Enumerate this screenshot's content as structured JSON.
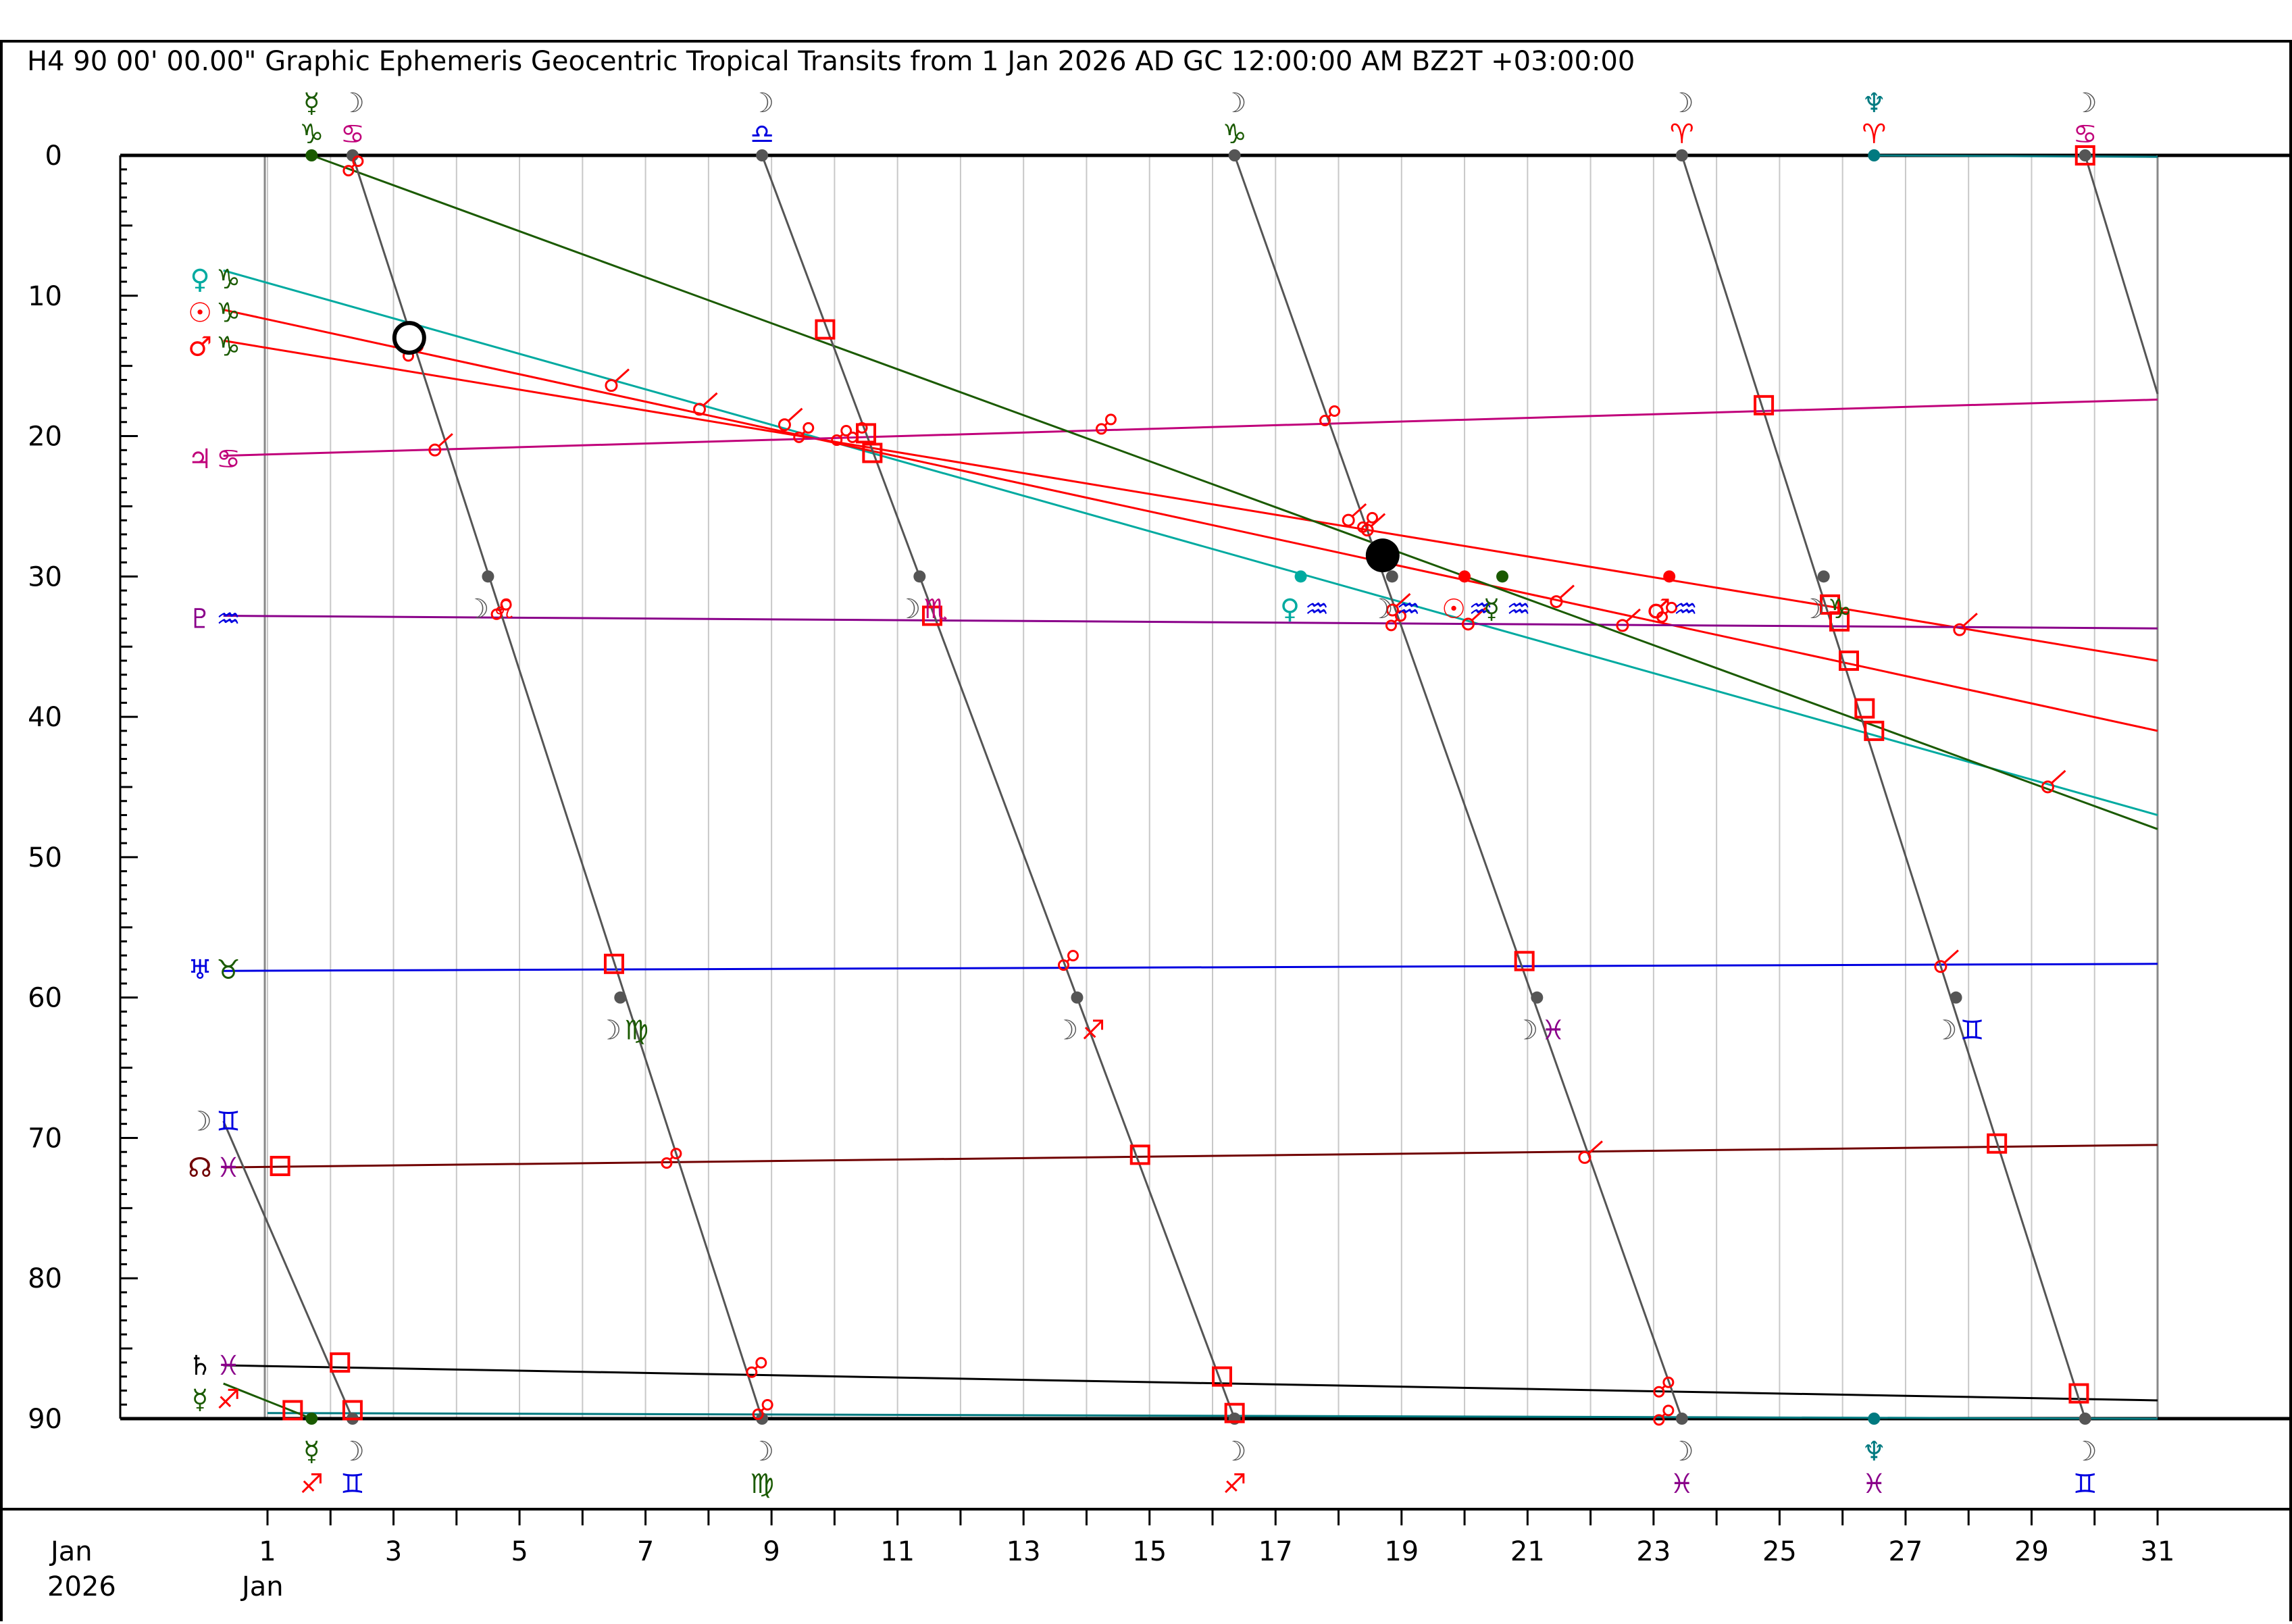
{
  "header": {
    "title": "H4   90 00' 00.00\" Graphic Ephemeris Geocentric Tropical Transits from 1 Jan 2026 AD GC 12:00:00 AM BZ2T +03:00:00"
  },
  "footer": {
    "month_label": "Jan",
    "year_label": "2026",
    "sub_month_label": "Jan"
  },
  "colors": {
    "moon": "#555555",
    "sun": "#ff0000",
    "mercury": "#1a5a00",
    "venus": "#00aaa0",
    "mars": "#ff0000",
    "jupiter": "#c0007a",
    "saturn": "#000000",
    "uranus": "#0000e0",
    "neptune": "#007a80",
    "pluto": "#8a008a",
    "node": "#700000",
    "aspect": "#ff0000",
    "grid": "#c8c8c8"
  },
  "chart_data": {
    "type": "line",
    "title": "H4   90 00' 00.00\" Graphic Ephemeris Geocentric Tropical Transits from 1 Jan 2026 AD GC 12:00:00 AM BZ2T +03:00:00",
    "xlabel": "Jan 2026",
    "ylabel": "",
    "xlim": [
      1,
      31
    ],
    "ylim": [
      0,
      90
    ],
    "y_axis_inverted": true,
    "grid": true,
    "x_ticks": [
      1,
      3,
      5,
      7,
      9,
      11,
      13,
      15,
      17,
      19,
      21,
      23,
      25,
      27,
      29,
      31
    ],
    "x_tick_labels": [
      "1",
      "3",
      "5",
      "7",
      "9",
      "11",
      "13",
      "15",
      "17",
      "19",
      "21",
      "23",
      "25",
      "27",
      "29",
      "31"
    ],
    "y_ticks": [
      0,
      10,
      20,
      30,
      40,
      50,
      60,
      70,
      80,
      90
    ],
    "y_tick_labels": [
      "0",
      "10",
      "20",
      "30",
      "40",
      "50",
      "60",
      "70",
      "80",
      "90"
    ],
    "series": [
      {
        "key": "venus",
        "symbol": "♀",
        "sign": "♑",
        "color": "#00aaa0",
        "x": [
          0.3,
          31
        ],
        "y": [
          8.2,
          47.0
        ]
      },
      {
        "key": "sun",
        "symbol": "☉",
        "sign": "♑",
        "color": "#ff0000",
        "x": [
          0.3,
          31
        ],
        "y": [
          11.0,
          41.0
        ]
      },
      {
        "key": "mars",
        "symbol": "♂",
        "sign": "♑",
        "color": "#ff0000",
        "x": [
          0.3,
          31
        ],
        "y": [
          13.2,
          36.0
        ]
      },
      {
        "key": "jupiter",
        "symbol": "♃",
        "sign": "♋",
        "color": "#c0007a",
        "x": [
          0.3,
          31
        ],
        "y": [
          21.4,
          17.4
        ]
      },
      {
        "key": "pluto",
        "symbol": "♇",
        "sign": "♒",
        "color": "#8a008a",
        "x": [
          0.3,
          31
        ],
        "y": [
          32.8,
          33.7
        ]
      },
      {
        "key": "uranus",
        "symbol": "♅",
        "sign": "♉",
        "color": "#0000e0",
        "x": [
          0.3,
          31
        ],
        "y": [
          58.1,
          57.6
        ]
      },
      {
        "key": "node",
        "symbol": "☊",
        "sign": "♓",
        "color": "#700000",
        "x": [
          0.3,
          31
        ],
        "y": [
          72.1,
          70.5
        ]
      },
      {
        "key": "saturn",
        "symbol": "♄",
        "sign": "♓",
        "color": "#000000",
        "x": [
          0.3,
          31
        ],
        "y": [
          86.2,
          88.7
        ]
      },
      {
        "key": "neptune",
        "symbol": "♆",
        "sign": "♓",
        "color": "#007a80",
        "x": [
          1.0,
          31
        ],
        "y": [
          89.6,
          90.0
        ]
      },
      {
        "key": "neptune_b",
        "symbol": "",
        "sign": "",
        "color": "#007a80",
        "x": [
          26.5,
          31
        ],
        "y": [
          0.0,
          0.1
        ]
      },
      {
        "key": "mercury",
        "symbol": "☿",
        "sign": "♑",
        "color": "#1a5a00",
        "x": [
          1.7,
          31
        ],
        "y": [
          0.0,
          48.0
        ]
      },
      {
        "key": "mercury_b",
        "symbol": "☿",
        "sign": "♐",
        "color": "#1a5a00",
        "x": [
          0.3,
          1.7
        ],
        "y": [
          87.5,
          90.0
        ]
      },
      {
        "key": "moon",
        "symbol": "☽",
        "sign": "♊",
        "color": "#555555",
        "x": [
          0.3,
          2.35
        ],
        "y": [
          68.8,
          90.0
        ]
      },
      {
        "key": "moon",
        "symbol": "☽",
        "sign": "",
        "color": "#555555",
        "x": [
          2.35,
          8.85
        ],
        "y": [
          0.0,
          90.0
        ]
      },
      {
        "key": "moon",
        "symbol": "☽",
        "sign": "",
        "color": "#555555",
        "x": [
          8.85,
          16.35
        ],
        "y": [
          0.0,
          90.0
        ]
      },
      {
        "key": "moon",
        "symbol": "☽",
        "sign": "",
        "color": "#555555",
        "x": [
          16.35,
          23.45
        ],
        "y": [
          0.0,
          90.0
        ]
      },
      {
        "key": "moon",
        "symbol": "☽",
        "sign": "",
        "color": "#555555",
        "x": [
          23.45,
          29.85
        ],
        "y": [
          0.0,
          90.0
        ]
      },
      {
        "key": "moon",
        "symbol": "☽",
        "sign": "",
        "color": "#555555",
        "x": [
          29.85,
          31.0
        ],
        "y": [
          0.0,
          17.0
        ]
      }
    ],
    "stations": [
      {
        "x": 1.7,
        "y": 0,
        "color": "#1a5a00"
      },
      {
        "x": 2.35,
        "y": 0,
        "color": "#555555"
      },
      {
        "x": 8.85,
        "y": 0,
        "color": "#555555"
      },
      {
        "x": 16.35,
        "y": 0,
        "color": "#555555"
      },
      {
        "x": 23.45,
        "y": 0,
        "color": "#555555"
      },
      {
        "x": 26.5,
        "y": 0,
        "color": "#007a80"
      },
      {
        "x": 29.85,
        "y": 0,
        "color": "#555555"
      },
      {
        "x": 1.7,
        "y": 90,
        "color": "#1a5a00"
      },
      {
        "x": 2.35,
        "y": 90,
        "color": "#555555"
      },
      {
        "x": 8.85,
        "y": 90,
        "color": "#555555"
      },
      {
        "x": 16.35,
        "y": 90,
        "color": "#555555"
      },
      {
        "x": 23.45,
        "y": 90,
        "color": "#555555"
      },
      {
        "x": 26.5,
        "y": 90,
        "color": "#007a80"
      },
      {
        "x": 29.85,
        "y": 90,
        "color": "#555555"
      },
      {
        "x": 4.5,
        "y": 30,
        "color": "#555555"
      },
      {
        "x": 6.6,
        "y": 60,
        "color": "#555555"
      },
      {
        "x": 11.35,
        "y": 30,
        "color": "#555555"
      },
      {
        "x": 13.85,
        "y": 60,
        "color": "#555555"
      },
      {
        "x": 18.85,
        "y": 30,
        "color": "#555555"
      },
      {
        "x": 21.15,
        "y": 60,
        "color": "#555555"
      },
      {
        "x": 25.7,
        "y": 30,
        "color": "#555555"
      },
      {
        "x": 27.8,
        "y": 60,
        "color": "#555555"
      },
      {
        "x": 17.4,
        "y": 30,
        "color": "#00aaa0"
      },
      {
        "x": 20.0,
        "y": 30,
        "color": "#ff0000"
      },
      {
        "x": 20.6,
        "y": 30,
        "color": "#1a5a00"
      },
      {
        "x": 23.25,
        "y": 30,
        "color": "#ff0000"
      }
    ],
    "top_labels": [
      {
        "x": 1.7,
        "symbol": "☿",
        "sign": "♑",
        "color": "#1a5a00",
        "sign_color": "#1a5a00"
      },
      {
        "x": 2.35,
        "symbol": "☽",
        "sign": "♋",
        "color": "#555555",
        "sign_color": "#c0007a"
      },
      {
        "x": 8.85,
        "symbol": "☽",
        "sign": "♎",
        "color": "#555555",
        "sign_color": "#0000e0"
      },
      {
        "x": 16.35,
        "symbol": "☽",
        "sign": "♑",
        "color": "#555555",
        "sign_color": "#1a5a00"
      },
      {
        "x": 23.45,
        "symbol": "☽",
        "sign": "♈",
        "color": "#555555",
        "sign_color": "#ff0000"
      },
      {
        "x": 26.5,
        "symbol": "♆",
        "sign": "♈",
        "color": "#007a80",
        "sign_color": "#ff0000"
      },
      {
        "x": 29.85,
        "symbol": "☽",
        "sign": "♋",
        "color": "#555555",
        "sign_color": "#c0007a"
      }
    ],
    "bottom_labels": [
      {
        "x": 1.7,
        "symbol": "☿",
        "sign": "♐",
        "color": "#1a5a00",
        "sign_color": "#ff0000"
      },
      {
        "x": 2.35,
        "symbol": "☽",
        "sign": "♊",
        "color": "#555555",
        "sign_color": "#0000e0"
      },
      {
        "x": 8.85,
        "symbol": "☽",
        "sign": "♍",
        "color": "#555555",
        "sign_color": "#1a5a00"
      },
      {
        "x": 16.35,
        "symbol": "☽",
        "sign": "♐",
        "color": "#555555",
        "sign_color": "#ff0000"
      },
      {
        "x": 23.45,
        "symbol": "☽",
        "sign": "♓",
        "color": "#555555",
        "sign_color": "#8a008a"
      },
      {
        "x": 26.5,
        "symbol": "♆",
        "sign": "♓",
        "color": "#007a80",
        "sign_color": "#8a008a"
      },
      {
        "x": 29.85,
        "symbol": "☽",
        "sign": "♊",
        "color": "#555555",
        "sign_color": "#0000e0"
      }
    ],
    "left_labels": [
      {
        "y": 8.8,
        "symbol": "♀",
        "sign": "♑",
        "color": "#00aaa0",
        "sign_color": "#1a5a00"
      },
      {
        "y": 11.2,
        "symbol": "☉",
        "sign": "♑",
        "color": "#ff0000",
        "sign_color": "#1a5a00"
      },
      {
        "y": 13.6,
        "symbol": "♂",
        "sign": "♑",
        "color": "#ff0000",
        "sign_color": "#1a5a00"
      },
      {
        "y": 21.6,
        "symbol": "♃",
        "sign": "♋",
        "color": "#c0007a",
        "sign_color": "#c0007a"
      },
      {
        "y": 33.0,
        "symbol": "♇",
        "sign": "♒",
        "color": "#8a008a",
        "sign_color": "#0000e0"
      },
      {
        "y": 58.0,
        "symbol": "♅",
        "sign": "♉",
        "color": "#0000e0",
        "sign_color": "#1a5a00"
      },
      {
        "y": 68.8,
        "symbol": "☽",
        "sign": "♊",
        "color": "#555555",
        "sign_color": "#0000e0"
      },
      {
        "y": 72.1,
        "symbol": "☊",
        "sign": "♓",
        "color": "#700000",
        "sign_color": "#8a008a"
      },
      {
        "y": 86.2,
        "symbol": "♄",
        "sign": "♓",
        "color": "#000000",
        "sign_color": "#8a008a"
      },
      {
        "y": 88.6,
        "symbol": "☿",
        "sign": "♐",
        "color": "#1a5a00",
        "sign_color": "#ff0000"
      }
    ],
    "ingress_labels": [
      {
        "x": 4.5,
        "y": 32.3,
        "moon": "☽",
        "sign": "♌",
        "sign_color": "#ff0000"
      },
      {
        "x": 11.35,
        "y": 32.3,
        "moon": "☽",
        "sign": "♏",
        "sign_color": "#c0007a"
      },
      {
        "x": 18.85,
        "y": 32.3,
        "moon": "☽",
        "sign": "♒",
        "sign_color": "#0000e0"
      },
      {
        "x": 25.7,
        "y": 32.3,
        "moon": "☽",
        "sign": "♑",
        "sign_color": "#1a5a00"
      },
      {
        "x": 6.6,
        "y": 62.3,
        "moon": "☽",
        "sign": "♍",
        "sign_color": "#1a5a00"
      },
      {
        "x": 13.85,
        "y": 62.3,
        "moon": "☽",
        "sign": "♐",
        "sign_color": "#ff0000"
      },
      {
        "x": 21.15,
        "y": 62.3,
        "moon": "☽",
        "sign": "♓",
        "sign_color": "#8a008a"
      },
      {
        "x": 27.8,
        "y": 62.3,
        "moon": "☽",
        "sign": "♊",
        "sign_color": "#0000e0"
      },
      {
        "x": 17.4,
        "y": 32.3,
        "moon": "♀",
        "sign": "♒",
        "sign_color": "#0000e0"
      },
      {
        "x": 20.0,
        "y": 32.3,
        "moon": "☉",
        "sign": "♒",
        "sign_color": "#0000e0"
      },
      {
        "x": 20.6,
        "y": 32.3,
        "moon": "☿",
        "sign": "♒",
        "sign_color": "#0000e0"
      },
      {
        "x": 23.25,
        "y": 32.3,
        "moon": "♂",
        "sign": "♒",
        "sign_color": "#0000e0"
      }
    ],
    "square_aspects": [
      {
        "x": 1.2,
        "y": 72.0
      },
      {
        "x": 2.15,
        "y": 86.0
      },
      {
        "x": 1.4,
        "y": 89.4
      },
      {
        "x": 2.35,
        "y": 89.4
      },
      {
        "x": 6.5,
        "y": 57.6
      },
      {
        "x": 9.85,
        "y": 12.4
      },
      {
        "x": 10.5,
        "y": 19.8
      },
      {
        "x": 10.6,
        "y": 21.2
      },
      {
        "x": 11.55,
        "y": 32.8
      },
      {
        "x": 14.85,
        "y": 71.2
      },
      {
        "x": 16.15,
        "y": 87.0
      },
      {
        "x": 16.35,
        "y": 89.6
      },
      {
        "x": 20.95,
        "y": 57.4
      },
      {
        "x": 24.75,
        "y": 17.8
      },
      {
        "x": 25.8,
        "y": 32.0
      },
      {
        "x": 25.95,
        "y": 33.2
      },
      {
        "x": 26.1,
        "y": 36.0
      },
      {
        "x": 26.35,
        "y": 39.4
      },
      {
        "x": 26.5,
        "y": 41.0
      },
      {
        "x": 28.45,
        "y": 70.4
      },
      {
        "x": 29.75,
        "y": 88.2
      },
      {
        "x": 29.85,
        "y": 0.0
      }
    ],
    "opposition_aspects": [
      {
        "x": 2.35,
        "y": 0.8
      },
      {
        "x": 3.3,
        "y": 14.0
      },
      {
        "x": 4.7,
        "y": 32.4
      },
      {
        "x": 7.4,
        "y": 71.5
      },
      {
        "x": 8.75,
        "y": 86.4
      },
      {
        "x": 8.85,
        "y": 89.4
      },
      {
        "x": 14.3,
        "y": 19.2
      },
      {
        "x": 13.7,
        "y": 57.4
      },
      {
        "x": 17.85,
        "y": 18.6
      },
      {
        "x": 18.45,
        "y": 26.2
      },
      {
        "x": 18.9,
        "y": 33.2
      },
      {
        "x": 23.15,
        "y": 87.8
      },
      {
        "x": 23.15,
        "y": 89.8
      },
      {
        "x": 23.2,
        "y": 32.6
      },
      {
        "x": 9.5,
        "y": 19.8
      },
      {
        "x": 10.1,
        "y": 20.0
      },
      {
        "x": 10.35,
        "y": 19.8
      }
    ],
    "conjunction_aspects": [
      {
        "x": 3.7,
        "y": 20.8
      },
      {
        "x": 6.5,
        "y": 16.2
      },
      {
        "x": 7.9,
        "y": 17.9
      },
      {
        "x": 9.25,
        "y": 19.0
      },
      {
        "x": 18.2,
        "y": 25.8
      },
      {
        "x": 18.5,
        "y": 26.5
      },
      {
        "x": 18.9,
        "y": 32.2
      },
      {
        "x": 20.1,
        "y": 33.2
      },
      {
        "x": 21.5,
        "y": 31.6
      },
      {
        "x": 21.95,
        "y": 71.2
      },
      {
        "x": 22.55,
        "y": 33.3
      },
      {
        "x": 27.6,
        "y": 57.6
      },
      {
        "x": 27.9,
        "y": 33.6
      },
      {
        "x": 29.3,
        "y": 44.8
      }
    ],
    "new_moon": {
      "x": 3.25,
      "y": 13.0
    },
    "full_moon": {
      "x": 18.7,
      "y": 28.5
    }
  }
}
